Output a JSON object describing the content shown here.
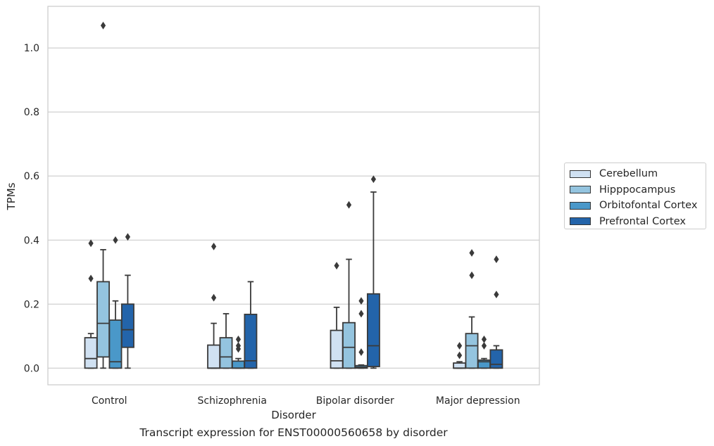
{
  "chart_data": {
    "type": "box",
    "xlabel": "Disorder",
    "ylabel": "TPMs",
    "caption": "Transcript expression for ENST00000560658 by disorder",
    "ylim": [
      -0.052,
      1.13
    ],
    "yticks": [
      "0.0",
      "0.2",
      "0.4",
      "0.6",
      "0.8",
      "1.0"
    ],
    "ytick_values": [
      0.0,
      0.2,
      0.4,
      0.6,
      0.8,
      1.0
    ],
    "grid": "horizontal",
    "legend_placement": "outside-right",
    "categories": [
      "Control",
      "Schizophrenia",
      "Bipolar disorder",
      "Major depression"
    ],
    "series": [
      {
        "name": "Cerebellum",
        "color": "#d0e1f2",
        "boxes": [
          {
            "q1": 0.0,
            "median": 0.03,
            "q3": 0.095,
            "whisker_low": 0.0,
            "whisker_high": 0.108,
            "outliers": [
              0.28,
              0.39
            ]
          },
          {
            "q1": 0.0,
            "median": 0.0,
            "q3": 0.072,
            "whisker_low": 0.0,
            "whisker_high": 0.14,
            "outliers": [
              0.22,
              0.38
            ]
          },
          {
            "q1": 0.0,
            "median": 0.023,
            "q3": 0.118,
            "whisker_low": 0.0,
            "whisker_high": 0.19,
            "outliers": [
              0.32
            ]
          },
          {
            "q1": 0.0,
            "median": 0.0,
            "q3": 0.016,
            "whisker_low": 0.0,
            "whisker_high": 0.02,
            "outliers": [
              0.04,
              0.07
            ]
          }
        ]
      },
      {
        "name": "Hipppocampus",
        "color": "#94c4df",
        "boxes": [
          {
            "q1": 0.035,
            "median": 0.14,
            "q3": 0.27,
            "whisker_low": 0.0,
            "whisker_high": 0.37,
            "outliers": [
              1.07
            ]
          },
          {
            "q1": 0.0,
            "median": 0.035,
            "q3": 0.095,
            "whisker_low": 0.0,
            "whisker_high": 0.17,
            "outliers": []
          },
          {
            "q1": 0.0,
            "median": 0.065,
            "q3": 0.142,
            "whisker_low": 0.0,
            "whisker_high": 0.34,
            "outliers": [
              0.51
            ]
          },
          {
            "q1": 0.0,
            "median": 0.07,
            "q3": 0.108,
            "whisker_low": 0.0,
            "whisker_high": 0.16,
            "outliers": [
              0.29,
              0.36
            ]
          }
        ]
      },
      {
        "name": "Orbitofontal Cortex",
        "color": "#4a98c9",
        "boxes": [
          {
            "q1": 0.0,
            "median": 0.02,
            "q3": 0.15,
            "whisker_low": 0.0,
            "whisker_high": 0.21,
            "outliers": [
              0.4
            ]
          },
          {
            "q1": 0.0,
            "median": 0.0,
            "q3": 0.022,
            "whisker_low": 0.0,
            "whisker_high": 0.03,
            "outliers": [
              0.06,
              0.07,
              0.09
            ]
          },
          {
            "q1": 0.0,
            "median": 0.003,
            "q3": 0.008,
            "whisker_low": 0.0,
            "whisker_high": 0.01,
            "outliers": [
              0.05,
              0.17,
              0.21
            ]
          },
          {
            "q1": 0.0,
            "median": 0.02,
            "q3": 0.025,
            "whisker_low": 0.0,
            "whisker_high": 0.03,
            "outliers": [
              0.07,
              0.09
            ]
          }
        ]
      },
      {
        "name": "Prefrontal Cortex",
        "color": "#2364aa",
        "boxes": [
          {
            "q1": 0.065,
            "median": 0.12,
            "q3": 0.2,
            "whisker_low": 0.0,
            "whisker_high": 0.29,
            "outliers": [
              0.41
            ]
          },
          {
            "q1": 0.0,
            "median": 0.023,
            "q3": 0.168,
            "whisker_low": 0.0,
            "whisker_high": 0.27,
            "outliers": []
          },
          {
            "q1": 0.005,
            "median": 0.07,
            "q3": 0.232,
            "whisker_low": 0.0,
            "whisker_high": 0.55,
            "outliers": [
              0.59
            ]
          },
          {
            "q1": 0.0,
            "median": 0.012,
            "q3": 0.057,
            "whisker_low": 0.0,
            "whisker_high": 0.07,
            "outliers": [
              0.23,
              0.34
            ]
          }
        ]
      }
    ]
  }
}
